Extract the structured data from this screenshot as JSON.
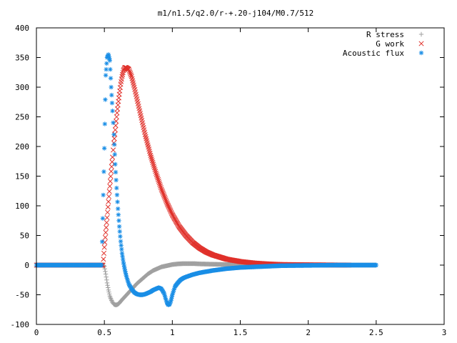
{
  "chart_data": {
    "type": "scatter",
    "title": "m1/n1.5/q2.0/r-+.20-j104/M0.7/512",
    "xlabel": "",
    "ylabel": "",
    "xlim": [
      0,
      3
    ],
    "ylim": [
      -100,
      400
    ],
    "x_ticks": [
      0,
      0.5,
      1,
      1.5,
      2,
      2.5,
      3
    ],
    "x_tick_labels": [
      "0",
      "0.5",
      "1",
      "1.5",
      "2",
      "2.5",
      "3"
    ],
    "y_ticks": [
      -100,
      -50,
      0,
      50,
      100,
      150,
      200,
      250,
      300,
      350,
      400
    ],
    "y_tick_labels": [
      "-100",
      "-50",
      "0",
      "50",
      "100",
      "150",
      "200",
      "250",
      "300",
      "350",
      "400"
    ],
    "legend_position": "top-right",
    "grid": false,
    "series": [
      {
        "name": "R stress",
        "marker": "plus",
        "color": "#a0a0a0",
        "x": [
          0.0,
          0.1,
          0.2,
          0.3,
          0.4,
          0.49,
          0.5,
          0.51,
          0.52,
          0.53,
          0.54,
          0.55,
          0.56,
          0.57,
          0.58,
          0.59,
          0.6,
          0.61,
          0.62,
          0.64,
          0.66,
          0.68,
          0.7,
          0.72,
          0.74,
          0.76,
          0.78,
          0.8,
          0.82,
          0.84,
          0.86,
          0.88,
          0.9,
          0.92,
          0.94,
          0.96,
          0.98,
          1.0,
          1.04,
          1.08,
          1.12,
          1.16,
          1.2,
          1.3,
          1.4,
          1.5,
          1.7,
          1.9,
          2.1,
          2.3,
          2.5
        ],
        "y": [
          0,
          0,
          0,
          0,
          0,
          0,
          -2,
          -15,
          -30,
          -42,
          -52,
          -58,
          -63,
          -66,
          -67,
          -67,
          -66,
          -64,
          -61,
          -56,
          -51,
          -46,
          -41,
          -36,
          -31,
          -27,
          -23,
          -19,
          -15,
          -12,
          -9,
          -7,
          -5,
          -3,
          -2,
          -1,
          0,
          1,
          2,
          2.5,
          2.5,
          2.5,
          2,
          1.5,
          1,
          0.5,
          0.3,
          0.1,
          0,
          0,
          0
        ]
      },
      {
        "name": "G work",
        "marker": "cross",
        "color": "#e0302a",
        "x": [
          0.0,
          0.1,
          0.2,
          0.3,
          0.4,
          0.49,
          0.5,
          0.51,
          0.52,
          0.53,
          0.54,
          0.55,
          0.56,
          0.57,
          0.58,
          0.59,
          0.6,
          0.61,
          0.62,
          0.63,
          0.64,
          0.65,
          0.66,
          0.68,
          0.7,
          0.72,
          0.74,
          0.76,
          0.78,
          0.8,
          0.84,
          0.88,
          0.92,
          0.96,
          1.0,
          1.05,
          1.1,
          1.15,
          1.2,
          1.25,
          1.3,
          1.4,
          1.5,
          1.6,
          1.7,
          1.8,
          2.0,
          2.3
        ],
        "y": [
          0,
          0,
          0,
          0,
          0,
          0,
          30,
          55,
          80,
          107,
          133,
          158,
          182,
          206,
          228,
          250,
          270,
          288,
          305,
          318,
          328,
          333,
          333,
          330,
          318,
          300,
          280,
          260,
          240,
          220,
          185,
          155,
          128,
          105,
          85,
          65,
          50,
          38,
          29,
          22,
          17,
          10,
          6,
          3.5,
          2,
          1,
          0.5,
          0
        ]
      },
      {
        "name": "Acoustic flux",
        "marker": "star",
        "color": "#1a8ee6",
        "x": [
          0.0,
          0.1,
          0.2,
          0.3,
          0.4,
          0.48,
          0.5,
          0.51,
          0.52,
          0.53,
          0.54,
          0.55,
          0.56,
          0.57,
          0.58,
          0.59,
          0.6,
          0.61,
          0.62,
          0.63,
          0.64,
          0.65,
          0.66,
          0.67,
          0.68,
          0.7,
          0.72,
          0.74,
          0.76,
          0.78,
          0.8,
          0.82,
          0.84,
          0.86,
          0.88,
          0.9,
          0.92,
          0.94,
          0.95,
          0.96,
          0.97,
          0.98,
          0.99,
          1.0,
          1.02,
          1.04,
          1.06,
          1.08,
          1.1,
          1.15,
          1.2,
          1.3,
          1.4,
          1.5,
          1.6,
          1.7,
          1.8,
          2.0,
          2.2,
          2.5
        ],
        "y": [
          0,
          0,
          0,
          0,
          0,
          0,
          197,
          320,
          350,
          355,
          345,
          300,
          260,
          220,
          170,
          130,
          95,
          65,
          40,
          20,
          5,
          -7,
          -17,
          -25,
          -32,
          -40,
          -46,
          -49,
          -50,
          -50,
          -49,
          -47,
          -45,
          -42,
          -40,
          -38,
          -40,
          -48,
          -56,
          -63,
          -67,
          -66,
          -60,
          -50,
          -36,
          -30,
          -25,
          -22,
          -20,
          -16,
          -13,
          -9,
          -6,
          -4,
          -3,
          -2,
          -1,
          -0.5,
          0,
          0
        ]
      }
    ]
  }
}
